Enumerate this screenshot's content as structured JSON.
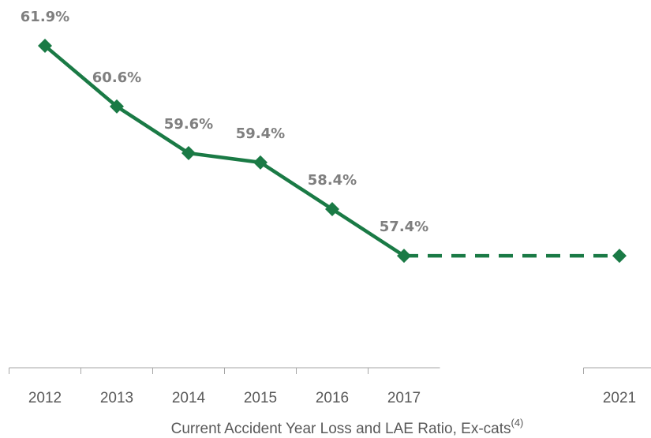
{
  "chart_data": {
    "type": "line",
    "title": "Current Accident Year Loss and LAE Ratio, Ex-cats",
    "title_note": "(4)",
    "categories": [
      "2012",
      "2013",
      "2014",
      "2015",
      "2016",
      "2017",
      null,
      null,
      "2021"
    ],
    "series": [
      {
        "color": "#1a7a45",
        "dash": false,
        "markers": true,
        "values": [
          61.9,
          60.6,
          59.6,
          59.4,
          58.4,
          57.4,
          null,
          null,
          57.4
        ],
        "value_labels": [
          "61.9%",
          "60.6%",
          "59.6%",
          "59.4%",
          "58.4%",
          "57.4%",
          null,
          null,
          null
        ]
      },
      {
        "color": "#1a7a45",
        "dash": true,
        "markers": false,
        "values": [
          null,
          null,
          null,
          null,
          null,
          57.4,
          57.4,
          57.4,
          57.4
        ]
      }
    ],
    "ylim": [
      55,
      63
    ]
  }
}
